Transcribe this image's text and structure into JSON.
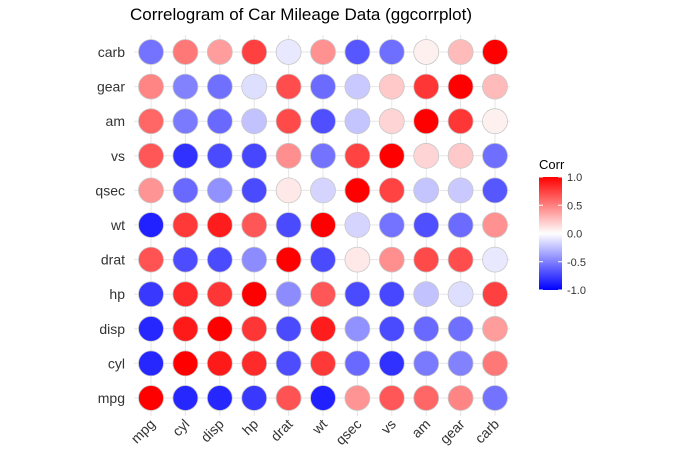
{
  "chart_data": {
    "type": "heatmap",
    "title": "Correlogram of Car Mileage Data (ggcorrplot)",
    "xlabel": "",
    "ylabel": "",
    "variables": [
      "mpg",
      "cyl",
      "disp",
      "hp",
      "drat",
      "wt",
      "qsec",
      "vs",
      "am",
      "gear",
      "carb"
    ],
    "x_order": [
      "mpg",
      "cyl",
      "disp",
      "hp",
      "drat",
      "wt",
      "qsec",
      "vs",
      "am",
      "gear",
      "carb"
    ],
    "y_order_top_to_bottom": [
      "carb",
      "gear",
      "am",
      "vs",
      "qsec",
      "wt",
      "drat",
      "hp",
      "disp",
      "cyl",
      "mpg"
    ],
    "matrix": [
      [
        1.0,
        -0.85,
        -0.85,
        -0.78,
        0.68,
        -0.87,
        0.42,
        0.66,
        0.6,
        0.48,
        -0.55
      ],
      [
        -0.85,
        1.0,
        0.9,
        0.83,
        -0.7,
        0.78,
        -0.59,
        -0.81,
        -0.52,
        -0.49,
        0.53
      ],
      [
        -0.85,
        0.9,
        1.0,
        0.79,
        -0.71,
        0.89,
        -0.43,
        -0.71,
        -0.59,
        -0.56,
        0.39
      ],
      [
        -0.78,
        0.83,
        0.79,
        1.0,
        -0.45,
        0.66,
        -0.71,
        -0.72,
        -0.24,
        -0.13,
        0.75
      ],
      [
        0.68,
        -0.7,
        -0.71,
        -0.45,
        1.0,
        -0.71,
        0.09,
        0.44,
        0.71,
        0.7,
        -0.09
      ],
      [
        -0.87,
        0.78,
        0.89,
        0.66,
        -0.71,
        1.0,
        -0.17,
        -0.55,
        -0.69,
        -0.58,
        0.43
      ],
      [
        0.42,
        -0.59,
        -0.43,
        -0.71,
        0.09,
        -0.17,
        1.0,
        0.74,
        -0.23,
        -0.21,
        -0.66
      ],
      [
        0.66,
        -0.81,
        -0.71,
        -0.72,
        0.44,
        -0.55,
        0.74,
        1.0,
        0.17,
        0.21,
        -0.57
      ],
      [
        0.6,
        -0.52,
        -0.59,
        -0.24,
        0.71,
        -0.69,
        -0.23,
        0.17,
        1.0,
        0.79,
        0.06
      ],
      [
        0.48,
        -0.49,
        -0.56,
        -0.13,
        0.7,
        -0.58,
        -0.21,
        0.21,
        0.79,
        1.0,
        0.27
      ],
      [
        -0.55,
        0.53,
        0.39,
        0.75,
        -0.09,
        0.43,
        -0.66,
        -0.57,
        0.06,
        0.27,
        1.0
      ]
    ],
    "legend": {
      "title": "Corr",
      "ticks": [
        "1.0",
        "0.5",
        "0.0",
        "-0.5",
        "-1.0"
      ],
      "tick_values": [
        1.0,
        0.5,
        0.0,
        -0.5,
        -1.0
      ],
      "range": [
        -1.0,
        1.0
      ],
      "placement": "right"
    },
    "colors": {
      "low": "#0000ff",
      "mid": "#ffffff",
      "high": "#ff0000",
      "outline": "#c8c8c8",
      "grid": "#e6e6e6"
    },
    "grid": true
  }
}
